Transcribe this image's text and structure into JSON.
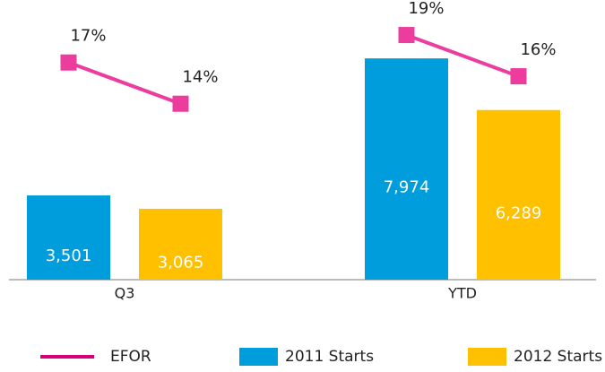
{
  "chart_data": {
    "type": "bar",
    "categories": [
      "Q3",
      "YTD"
    ],
    "ylim": [
      750,
      9500
    ],
    "y2lim": [
      1.2,
      20.7
    ],
    "series": [
      {
        "name": "2011 Starts",
        "color": "#009ddc",
        "values": [
          3501,
          7974
        ],
        "value_labels": [
          "3,501",
          "7,974"
        ]
      },
      {
        "name": "2012 Starts",
        "color": "#ffc000",
        "values": [
          3065,
          6289
        ],
        "value_labels": [
          "3,065",
          "6,289"
        ]
      },
      {
        "name": "EFOR",
        "type": "line",
        "axis": "y2",
        "color": "#ec3d9f",
        "values": [
          [
            17,
            14
          ],
          [
            19,
            16
          ]
        ],
        "value_labels": [
          [
            "17%",
            "14%"
          ],
          [
            "19%",
            "16%"
          ]
        ]
      }
    ]
  }
}
